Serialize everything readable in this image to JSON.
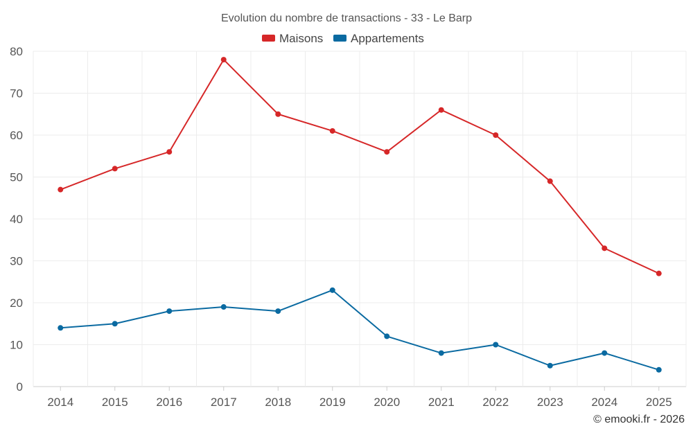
{
  "chart_data": {
    "type": "line",
    "title": "Evolution du nombre de transactions - 33 - Le Barp",
    "categories": [
      "2014",
      "2015",
      "2016",
      "2017",
      "2018",
      "2019",
      "2020",
      "2021",
      "2022",
      "2023",
      "2024",
      "2025"
    ],
    "series": [
      {
        "name": "Maisons",
        "color": "#d62728",
        "values": [
          47,
          52,
          56,
          78,
          65,
          61,
          56,
          66,
          60,
          49,
          33,
          27
        ]
      },
      {
        "name": "Appartements",
        "color": "#0a6aa1",
        "values": [
          14,
          15,
          18,
          19,
          18,
          23,
          12,
          8,
          10,
          5,
          8,
          4
        ]
      }
    ],
    "ylim": [
      0,
      80
    ],
    "yticks": [
      0,
      10,
      20,
      30,
      40,
      50,
      60,
      70,
      80
    ],
    "xlabel": "",
    "ylabel": "",
    "legend_position": "top-center",
    "grid": true
  },
  "footer": {
    "credit": "© emooki.fr - 2026"
  }
}
